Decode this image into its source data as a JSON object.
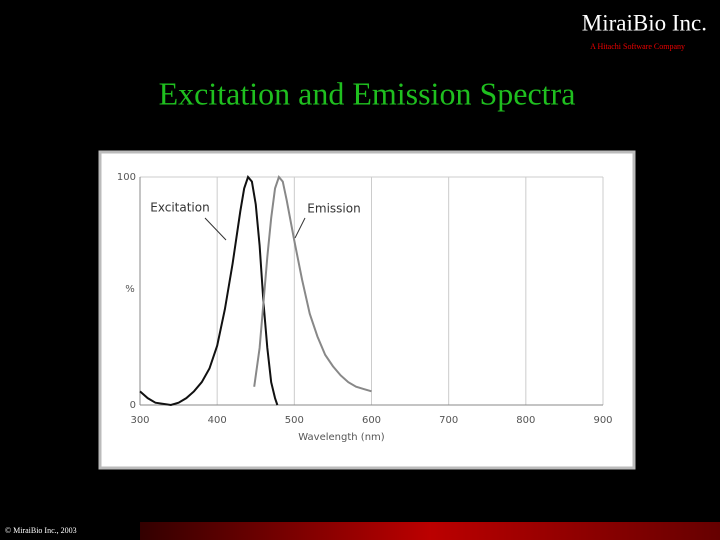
{
  "header": {
    "company": "MiraiBio Inc.",
    "tagline": "A Hitachi Software Company"
  },
  "footer": "© MiraiBio Inc., 2003",
  "chart_data": {
    "type": "line",
    "title": "Excitation and Emission Spectra",
    "x_label": "Wavelength (nm)",
    "y_label": "%",
    "xlim": [
      300,
      900
    ],
    "xticks": [
      300,
      400,
      500,
      600,
      700,
      800,
      900
    ],
    "ylim": [
      0,
      100
    ],
    "yticks": [
      0,
      100
    ],
    "grid": true,
    "series": [
      {
        "name": "Excitation",
        "color": "#111111",
        "x": [
          300,
          310,
          320,
          340,
          350,
          360,
          370,
          380,
          390,
          400,
          410,
          420,
          430,
          435,
          440,
          445,
          450,
          455,
          460,
          465,
          470,
          475,
          478
        ],
        "values": [
          6,
          3,
          1,
          0,
          1,
          3,
          6,
          10,
          16,
          26,
          42,
          62,
          85,
          95,
          100,
          98,
          88,
          70,
          45,
          25,
          10,
          3,
          0
        ]
      },
      {
        "name": "Emission",
        "color": "#888888",
        "x": [
          448,
          455,
          460,
          465,
          470,
          475,
          480,
          485,
          490,
          500,
          510,
          520,
          530,
          540,
          550,
          560,
          570,
          580,
          590,
          600
        ],
        "values": [
          8,
          25,
          45,
          65,
          82,
          95,
          100,
          98,
          90,
          72,
          55,
          40,
          30,
          22,
          17,
          13,
          10,
          8,
          7,
          6
        ]
      }
    ]
  }
}
